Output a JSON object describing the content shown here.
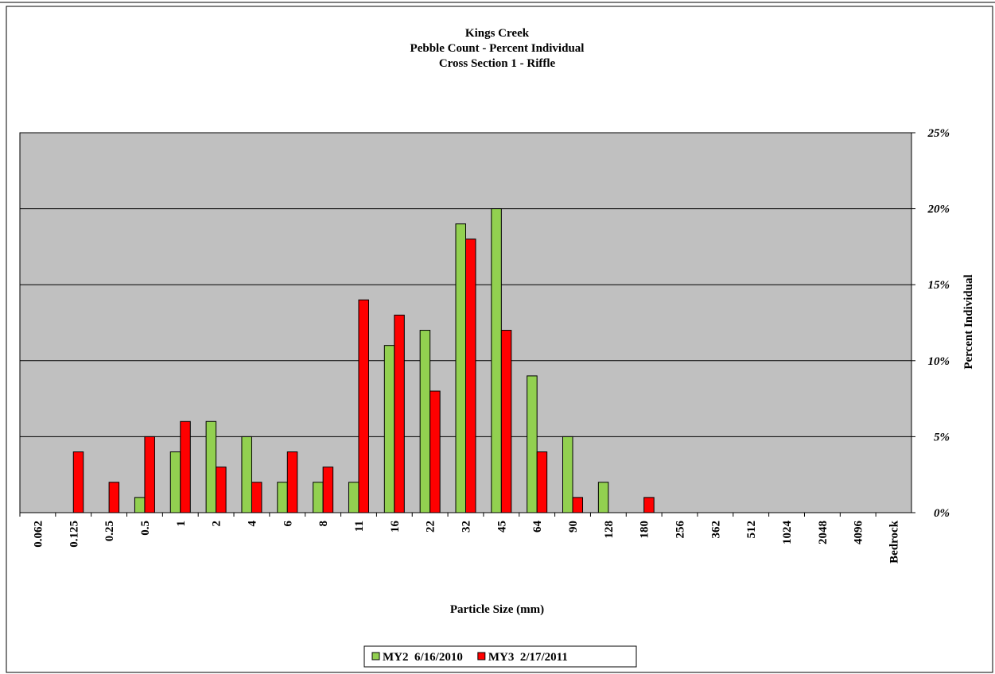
{
  "chart_data": {
    "type": "bar",
    "title": [
      "Kings Creek",
      "Pebble Count - Percent Individual",
      "Cross Section 1 - Riffle"
    ],
    "x_label": "Particle Size (mm)",
    "y_label": "Percent Individual",
    "categories": [
      "0.062",
      "0.125",
      "0.25",
      "0.5",
      "1",
      "2",
      "4",
      "6",
      "8",
      "11",
      "16",
      "22",
      "32",
      "45",
      "64",
      "90",
      "128",
      "180",
      "256",
      "362",
      "512",
      "1024",
      "2048",
      "4096",
      "Bedrock"
    ],
    "series": [
      {
        "name": "MY2  6/16/2010",
        "color": "#92d050",
        "values": [
          0,
          0,
          0,
          1,
          4,
          6,
          5,
          2,
          2,
          2,
          11,
          12,
          19,
          20,
          9,
          5,
          2,
          0,
          0,
          0,
          0,
          0,
          0,
          0,
          0
        ]
      },
      {
        "name": "MY3  2/17/2011",
        "color": "#ff0000",
        "values": [
          0,
          4,
          2,
          5,
          6,
          3,
          2,
          4,
          3,
          14,
          13,
          8,
          18,
          12,
          4,
          1,
          0,
          1,
          0,
          0,
          0,
          0,
          0,
          0,
          0
        ]
      }
    ],
    "ylim": [
      0,
      25
    ],
    "yticks": [
      {
        "value": 0,
        "label": "0%"
      },
      {
        "value": 5,
        "label": "5%"
      },
      {
        "value": 10,
        "label": "10%"
      },
      {
        "value": 15,
        "label": "15%"
      },
      {
        "value": 20,
        "label": "20%"
      },
      {
        "value": 25,
        "label": "25%"
      }
    ],
    "grid": true,
    "y_axis_side": "right",
    "plot_background": "#c0c0c0",
    "legend": "bottom"
  }
}
